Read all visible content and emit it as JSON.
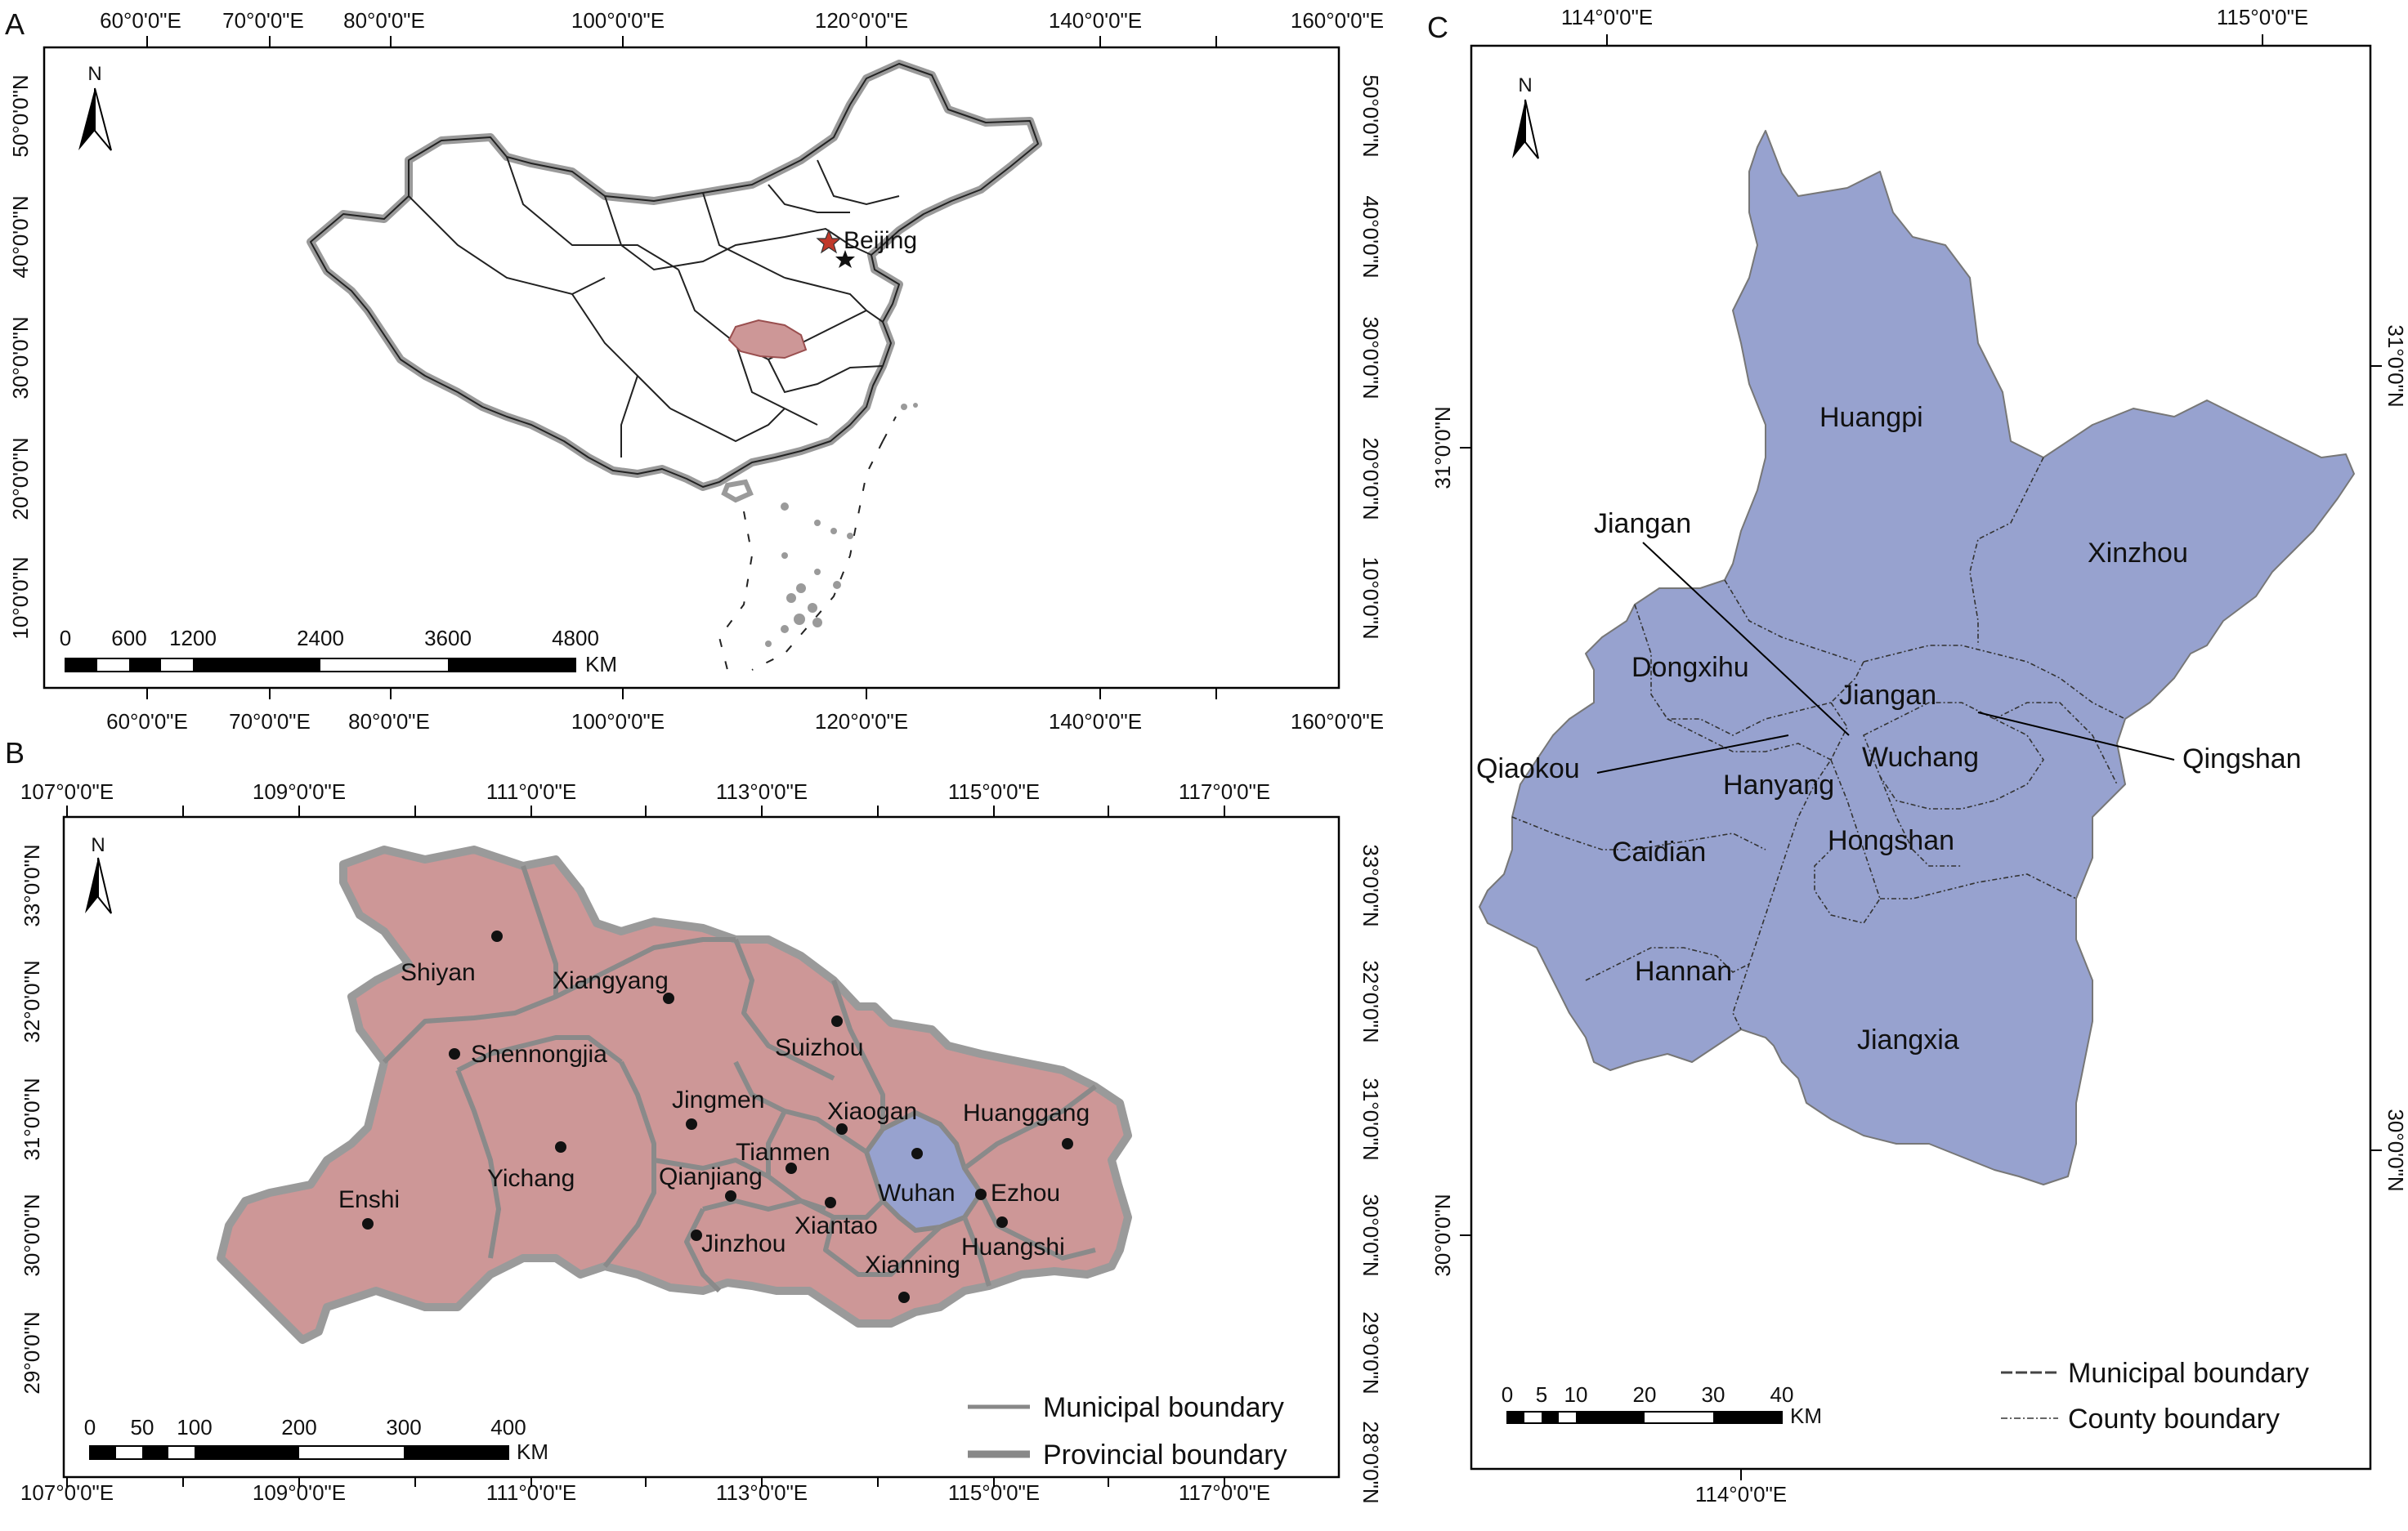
{
  "colors": {
    "hubei": "#cd9797",
    "wuhan": "#97a2cf",
    "frame": "#000000",
    "boundary_gray": "#9a9a9a",
    "china_fill": "#ffffff",
    "beijing_star": "#c0392b"
  },
  "panel_a": {
    "label": "A",
    "lon_ticks_top": [
      "60°0'0\"E",
      "70°0'0\"E",
      "80°0'0\"E",
      "100°0'0\"E",
      "120°0'0\"E",
      "140°0'0\"E",
      "160°0'0\"E"
    ],
    "lon_ticks_bottom": [
      "60°0'0\"E",
      "70°0'0\"E",
      "80°0'0\"E",
      "100°0'0\"E",
      "120°0'0\"E",
      "140°0'0\"E",
      "160°0'0\"E"
    ],
    "lat_ticks_left": [
      "50°0'0\"N",
      "40°0'0\"N",
      "30°0'0\"N",
      "20°0'0\"N",
      "10°0'0\"N"
    ],
    "lat_ticks_right": [
      "50°0'0\"N",
      "40°0'0\"N",
      "30°0'0\"N",
      "20°0'0\"N",
      "10°0'0\"N"
    ],
    "north": "N",
    "city_label": "Beijing",
    "scale_labels": [
      "0",
      "600",
      "1200",
      "2400",
      "3600",
      "4800"
    ],
    "scale_unit": "KM"
  },
  "panel_b": {
    "label": "B",
    "lon_ticks_top": [
      "107°0'0\"E",
      "109°0'0\"E",
      "111°0'0\"E",
      "113°0'0\"E",
      "115°0'0\"E",
      "117°0'0\"E"
    ],
    "lon_ticks_bottom": [
      "107°0'0\"E",
      "109°0'0\"E",
      "111°0'0\"E",
      "113°0'0\"E",
      "115°0'0\"E",
      "117°0'0\"E"
    ],
    "lat_ticks_left": [
      "33°0'0\"N",
      "32°0'0\"N",
      "31°0'0\"N",
      "30°0'0\"N",
      "29°0'0\"N"
    ],
    "lat_ticks_right": [
      "33°0'0\"N",
      "32°0'0\"N",
      "31°0'0\"N",
      "30°0'0\"N",
      "29°0'0\"N",
      "28°0'0\"N"
    ],
    "north": "N",
    "cities": [
      "Shiyan",
      "Xiangyang",
      "Shennongjia",
      "Suizhou",
      "Jingmen",
      "Xiaogan",
      "Huanggang",
      "Enshi",
      "Yichang",
      "Tianmen",
      "Qianjiang",
      "Wuhan",
      "Ezhou",
      "Xiantao",
      "Jinzhou",
      "Huangshi",
      "Xianning"
    ],
    "legend": [
      "Municipal boundary",
      "Provincial boundary"
    ],
    "scale_labels": [
      "0",
      "50",
      "100",
      "200",
      "300",
      "400"
    ],
    "scale_unit": "KM"
  },
  "panel_c": {
    "label": "C",
    "lon_ticks_top": [
      "114°0'0\"E",
      "115°0'0\"E"
    ],
    "lon_ticks_bottom": [
      "114°0'0\"E"
    ],
    "lat_ticks_left": [
      "31°0'0\"N",
      "30°0'0\"N"
    ],
    "lat_ticks_right": [
      "31°0'0\"N",
      "30°0'0\"N"
    ],
    "north": "N",
    "districts": [
      "Huangpi",
      "Xinzhou",
      "Dongxihu",
      "Jiangan",
      "Wuchang",
      "Hanyang",
      "Caidian",
      "Hongshan",
      "Hannan",
      "Jiangxia"
    ],
    "callouts": [
      "Jiangan",
      "Qiaokou",
      "Qingshan"
    ],
    "legend": [
      "Municipal boundary",
      "County boundary"
    ],
    "scale_labels": [
      "0",
      "5",
      "10",
      "20",
      "30",
      "40"
    ],
    "scale_unit": "KM"
  }
}
